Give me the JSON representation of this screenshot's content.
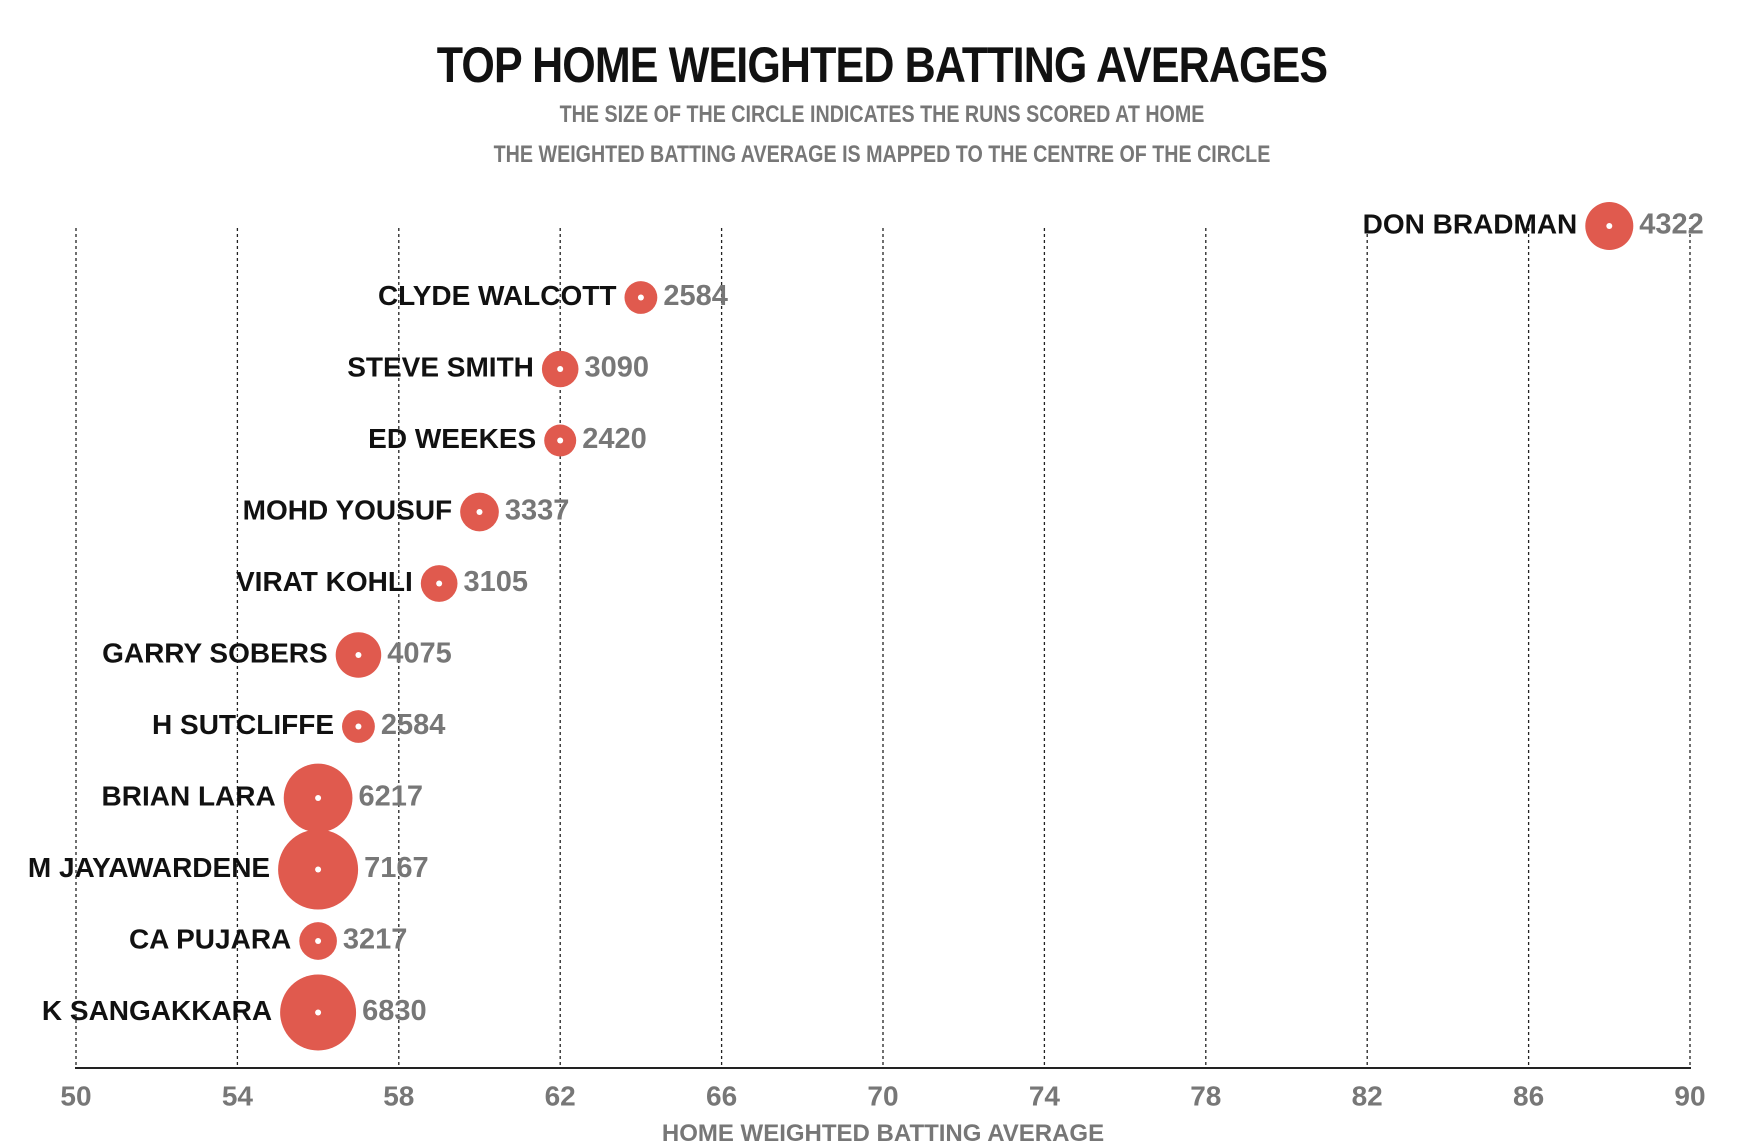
{
  "chart_data": {
    "type": "scatter",
    "title": "TOP HOME WEIGHTED BATTING AVERAGES",
    "subtitle_lines": [
      "THE SIZE OF THE CIRCLE INDICATES THE RUNS SCORED AT HOME",
      "THE WEIGHTED BATTING AVERAGE IS MAPPED TO THE CENTRE OF THE CIRCLE"
    ],
    "xlabel": "HOME WEIGHTED BATTING AVERAGE",
    "ylabel": "",
    "xlim": [
      50,
      90
    ],
    "xticks": [
      50,
      54,
      58,
      62,
      66,
      70,
      74,
      78,
      82,
      86,
      90
    ],
    "grid": "vertical dashed",
    "legend": "none",
    "colors": {
      "bubble": "#e05a4e",
      "center_dot": "#ffffff",
      "player_label": "#111111",
      "runs_label": "#777777",
      "tick_label": "#777777"
    },
    "points": [
      {
        "player": "DON BRADMAN",
        "average": 88.0,
        "runs": 4322
      },
      {
        "player": "CLYDE WALCOTT",
        "average": 64.0,
        "runs": 2584
      },
      {
        "player": "STEVE SMITH",
        "average": 62.0,
        "runs": 3090
      },
      {
        "player": "ED WEEKES",
        "average": 62.0,
        "runs": 2420
      },
      {
        "player": "MOHD YOUSUF",
        "average": 60.0,
        "runs": 3337
      },
      {
        "player": "VIRAT KOHLI",
        "average": 59.0,
        "runs": 3105
      },
      {
        "player": "GARRY SOBERS",
        "average": 57.0,
        "runs": 4075
      },
      {
        "player": "H SUTCLIFFE",
        "average": 57.0,
        "runs": 2584
      },
      {
        "player": "BRIAN LARA",
        "average": 56.0,
        "runs": 6217
      },
      {
        "player": "M JAYAWARDENE",
        "average": 56.0,
        "runs": 7167
      },
      {
        "player": "CA PUJARA",
        "average": 56.0,
        "runs": 3217
      },
      {
        "player": "K SANGAKKARA",
        "average": 56.0,
        "runs": 6830
      }
    ]
  }
}
